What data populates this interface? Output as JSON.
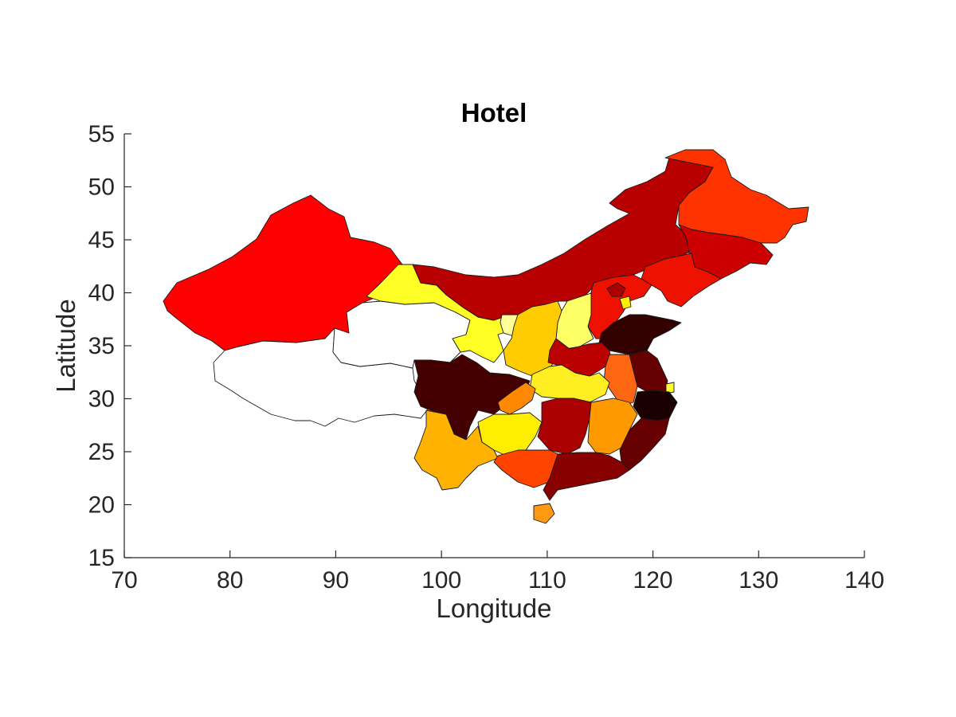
{
  "chart_data": {
    "type": "heatmap",
    "title": "Hotel",
    "xlabel": "Longitude",
    "ylabel": "Latitude",
    "xlim": [
      70,
      140
    ],
    "ylim": [
      15,
      55
    ],
    "xticks": [
      "70",
      "80",
      "90",
      "100",
      "110",
      "120",
      "130",
      "140"
    ],
    "yticks": [
      "15",
      "20",
      "25",
      "30",
      "35",
      "40",
      "45",
      "50",
      "55"
    ],
    "colormap": "hot",
    "regions": [
      {
        "id": "xinjiang",
        "color": "#ff0000"
      },
      {
        "id": "tibet",
        "color": "#ffffff"
      },
      {
        "id": "qinghai",
        "color": "#ffffff"
      },
      {
        "id": "gansu",
        "color": "#ffff26"
      },
      {
        "id": "inner-mongolia",
        "color": "#b80000"
      },
      {
        "id": "heilongjiang",
        "color": "#ff3300"
      },
      {
        "id": "jilin",
        "color": "#cc0000"
      },
      {
        "id": "liaoning",
        "color": "#ee1100"
      },
      {
        "id": "hebei",
        "color": "#ee1100"
      },
      {
        "id": "beijing",
        "color": "#aa0000"
      },
      {
        "id": "tianjin",
        "color": "#ffee00"
      },
      {
        "id": "shanxi",
        "color": "#ffff66"
      },
      {
        "id": "ningxia",
        "color": "#ffff99"
      },
      {
        "id": "shaanxi",
        "color": "#ffcc00"
      },
      {
        "id": "shandong",
        "color": "#330000"
      },
      {
        "id": "henan",
        "color": "#bb0000"
      },
      {
        "id": "jiangsu",
        "color": "#660000"
      },
      {
        "id": "anhui",
        "color": "#ff6611"
      },
      {
        "id": "shanghai",
        "color": "#ffff33"
      },
      {
        "id": "zhejiang",
        "color": "#1a0000"
      },
      {
        "id": "hubei",
        "color": "#ffee22"
      },
      {
        "id": "sichuan",
        "color": "#440000"
      },
      {
        "id": "chongqing",
        "color": "#ff8800"
      },
      {
        "id": "guizhou",
        "color": "#ffee00"
      },
      {
        "id": "yunnan",
        "color": "#ffb300"
      },
      {
        "id": "hunan",
        "color": "#aa0000"
      },
      {
        "id": "jiangxi",
        "color": "#ff9900"
      },
      {
        "id": "fujian",
        "color": "#660000"
      },
      {
        "id": "guangxi",
        "color": "#ff4400"
      },
      {
        "id": "guangdong",
        "color": "#880000"
      },
      {
        "id": "hainan",
        "color": "#ff9911"
      }
    ]
  }
}
